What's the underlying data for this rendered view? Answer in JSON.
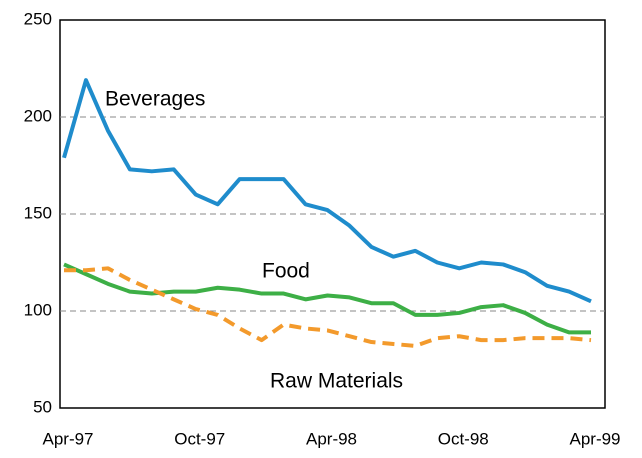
{
  "chart_data": {
    "type": "line",
    "categories": [
      "Apr-97",
      null,
      null,
      null,
      null,
      null,
      "Oct-97",
      null,
      null,
      null,
      null,
      null,
      "Apr-98",
      null,
      null,
      null,
      null,
      null,
      "Oct-98",
      null,
      null,
      null,
      null,
      null,
      "Apr-99"
    ],
    "series": [
      {
        "name": "Beverages",
        "color": "#1f8ccc",
        "style": "solid",
        "values": [
          179,
          219,
          193,
          173,
          172,
          173,
          160,
          155,
          168,
          168,
          168,
          155,
          152,
          144,
          133,
          128,
          131,
          125,
          122,
          125,
          124,
          120,
          113,
          110,
          105
        ]
      },
      {
        "name": "Food",
        "color": "#3daf46",
        "style": "solid",
        "values": [
          124,
          119,
          114,
          110,
          109,
          110,
          110,
          112,
          111,
          109,
          109,
          106,
          108,
          107,
          104,
          104,
          98,
          98,
          99,
          102,
          103,
          99,
          93,
          89,
          89
        ]
      },
      {
        "name": "Raw Materials",
        "color": "#f39a2c",
        "style": "dashed",
        "values": [
          121,
          121,
          122,
          116,
          111,
          106,
          101,
          98,
          91,
          85,
          93,
          91,
          90,
          87,
          84,
          83,
          82,
          86,
          87,
          85,
          85,
          86,
          86,
          86,
          85
        ]
      }
    ],
    "ylim": [
      50,
      250
    ],
    "yticks": [
      50,
      100,
      150,
      200,
      250
    ],
    "grid": true
  }
}
